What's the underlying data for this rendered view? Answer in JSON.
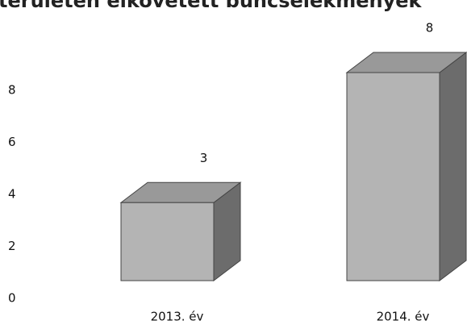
{
  "chart_data": {
    "type": "bar3d",
    "title": "területen elkövetett bűncselekmények",
    "categories": [
      "2013. év",
      "2014. év"
    ],
    "values": [
      3,
      8
    ],
    "color": "#b4b4b4",
    "ylim": [
      0,
      8
    ],
    "yticks": [
      0,
      2,
      4,
      6,
      8
    ]
  }
}
